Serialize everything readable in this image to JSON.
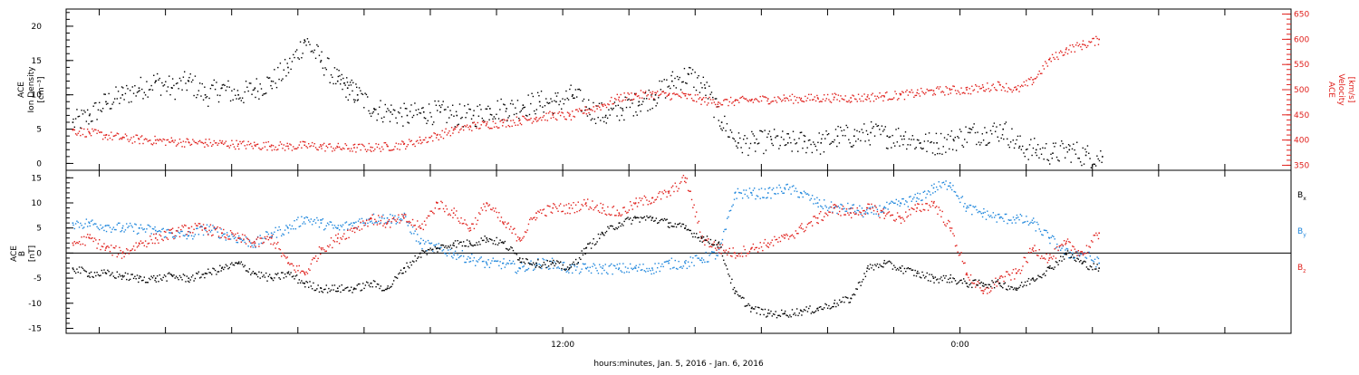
{
  "colors": {
    "black": "#000000",
    "red": "#e0201c",
    "blue": "#1e86dc",
    "frame": "#000000"
  },
  "chart_data": [
    {
      "type": "scatter",
      "panel": "top",
      "ylabel_left": [
        "ACE",
        "Ion Density",
        "[cm⁻³]"
      ],
      "ylabel_right": [
        "ACE",
        "Velocity",
        "[km/s]"
      ],
      "ylim_left": [
        -1,
        22.5
      ],
      "ylim_right": [
        340,
        660
      ],
      "yticks_left": [
        "0",
        "5",
        "10",
        "15",
        "20"
      ],
      "yticks_right": [
        "350",
        "400",
        "450",
        "500",
        "550",
        "600",
        "650"
      ],
      "xlim_hours": [
        -3,
        34
      ],
      "series": [
        {
          "axis": "left",
          "color": "black",
          "x": [
            -2.8,
            -2.3,
            -1.8,
            -1.3,
            -0.8,
            -0.3,
            0.2,
            0.7,
            1.2,
            1.7,
            2.2,
            2.7,
            3.2,
            3.7,
            4.2,
            4.7,
            5.2,
            5.5,
            5.8,
            6.3,
            6.8,
            7.3,
            7.8,
            8.3,
            8.8,
            9.3,
            9.8,
            10.3,
            10.8,
            11.3,
            11.8,
            12.3,
            12.8,
            13.3,
            13.8,
            14.3,
            14.8,
            15.3,
            15.8,
            16.3,
            16.8,
            17.3,
            17.8,
            18.3,
            18.8,
            19.3,
            19.8,
            20.3,
            20.8,
            21.3,
            21.8,
            22.3,
            22.8,
            23.3,
            23.8,
            24.3,
            24.8,
            25.3,
            25.8,
            26.3,
            26.8,
            27.3,
            27.8,
            28.3
          ],
          "y": [
            6,
            7,
            9,
            10,
            11,
            12,
            11,
            12,
            10,
            11,
            10,
            11,
            12,
            14,
            18,
            15,
            12,
            11,
            10,
            8,
            7.5,
            7,
            7.5,
            7.5,
            7,
            7,
            8,
            8,
            8.5,
            9,
            9,
            10,
            8,
            7,
            8,
            9,
            10,
            12,
            13,
            11,
            6,
            3,
            3,
            3.5,
            3,
            3.2,
            3,
            4,
            4,
            4.5,
            4,
            4,
            3,
            3,
            3.5,
            4.5,
            4.5,
            5,
            2.5,
            2,
            1.5,
            2,
            1.2,
            1
          ]
        },
        {
          "axis": "right",
          "color": "red",
          "x": [
            -2.8,
            -2.3,
            -1.8,
            -1.3,
            -0.8,
            -0.3,
            0.2,
            0.7,
            1.2,
            1.7,
            2.2,
            2.7,
            3.2,
            3.7,
            4.2,
            4.7,
            5.2,
            5.7,
            6.2,
            6.7,
            7.2,
            7.7,
            8.2,
            8.7,
            9.2,
            9.7,
            10.2,
            10.7,
            11.2,
            11.7,
            12.2,
            12.7,
            13.2,
            13.7,
            14.2,
            14.7,
            15.2,
            15.7,
            16.2,
            16.7,
            17.2,
            17.7,
            18.2,
            18.7,
            19.2,
            19.7,
            20.2,
            20.7,
            21.2,
            21.7,
            22.2,
            22.7,
            23.2,
            23.7,
            24.2,
            24.7,
            25.2,
            25.7,
            26.2,
            26.7,
            27.2,
            27.7,
            28.2
          ],
          "y": [
            420,
            415,
            410,
            405,
            402,
            400,
            398,
            396,
            395,
            394,
            392,
            390,
            390,
            388,
            390,
            388,
            386,
            385,
            386,
            388,
            392,
            400,
            410,
            420,
            428,
            432,
            435,
            440,
            445,
            450,
            448,
            460,
            470,
            485,
            490,
            492,
            490,
            488,
            480,
            475,
            478,
            480,
            482,
            483,
            483,
            484,
            485,
            484,
            486,
            488,
            490,
            494,
            498,
            500,
            500,
            505,
            510,
            500,
            520,
            560,
            580,
            590,
            600
          ]
        }
      ]
    },
    {
      "type": "scatter",
      "panel": "bottom",
      "ylabel_left": [
        "ACE",
        "B",
        "[nT]"
      ],
      "ylim": [
        -16,
        16.5
      ],
      "yticks": [
        "-15",
        "-10",
        "-5",
        "0",
        "5",
        "10",
        "15"
      ],
      "xlim_hours": [
        -3,
        34
      ],
      "xtick_labels": [
        {
          "hour": 12,
          "label": "12:00"
        },
        {
          "hour": 24,
          "label": "0:00"
        }
      ],
      "xlabel": "hours:minutes, Jan.  5, 2016 - Jan.  6, 2016",
      "legend": [
        "Bx",
        "By",
        "Bz"
      ],
      "series": [
        {
          "name": "Bx",
          "color": "black",
          "x": [
            -2.8,
            -2.3,
            -1.8,
            -1.3,
            -0.8,
            -0.3,
            0.2,
            0.7,
            1.2,
            1.7,
            2.2,
            2.7,
            3.2,
            3.7,
            4.2,
            4.7,
            5.2,
            5.7,
            6.2,
            6.7,
            7.2,
            7.7,
            8.2,
            8.7,
            9.2,
            9.7,
            10.2,
            10.7,
            11.2,
            11.7,
            12.2,
            12.7,
            13.2,
            13.7,
            14.2,
            14.7,
            15.2,
            15.7,
            16.2,
            16.7,
            17.2,
            17.7,
            18.2,
            18.7,
            19.2,
            19.7,
            20.2,
            20.7,
            21.2,
            21.7,
            22.2,
            22.7,
            23.2,
            23.7,
            24.2,
            24.7,
            25.2,
            25.7,
            26.2,
            26.7,
            27.2,
            27.7,
            28.2
          ],
          "y": [
            -3,
            -4,
            -4,
            -4.5,
            -5,
            -5,
            -4.5,
            -5,
            -4,
            -3,
            -2,
            -4,
            -5,
            -4,
            -6,
            -7,
            -7,
            -7,
            -6,
            -7,
            -3,
            0,
            1,
            2,
            2,
            3,
            2,
            -1,
            -2,
            -2,
            -3,
            1,
            4,
            6,
            7,
            7,
            6,
            5,
            3,
            2,
            -8,
            -11,
            -12,
            -12,
            -11.5,
            -11,
            -10,
            -9,
            -3,
            -2,
            -3,
            -4,
            -5,
            -5,
            -6,
            -6,
            -6,
            -7,
            -5,
            -3,
            0,
            -2,
            -3
          ]
        },
        {
          "name": "By",
          "color": "blue",
          "x": [
            -2.8,
            -2.3,
            -1.8,
            -1.3,
            -0.8,
            -0.3,
            0.2,
            0.7,
            1.2,
            1.7,
            2.2,
            2.7,
            3.2,
            3.7,
            4.2,
            4.7,
            5.2,
            5.7,
            6.2,
            6.7,
            7.2,
            7.7,
            8.2,
            8.7,
            9.2,
            9.7,
            10.2,
            10.7,
            11.2,
            11.7,
            12.2,
            12.7,
            13.2,
            13.7,
            14.2,
            14.7,
            15.2,
            15.7,
            16.2,
            16.7,
            17.2,
            17.7,
            18.2,
            18.7,
            19.2,
            19.7,
            20.2,
            20.7,
            21.2,
            21.7,
            22.2,
            22.7,
            23.2,
            23.7,
            24.2,
            24.7,
            25.2,
            25.7,
            26.2,
            26.7,
            27.2,
            27.7,
            28.2
          ],
          "y": [
            6,
            6,
            5.5,
            5,
            5,
            4.5,
            4,
            3.5,
            5,
            4,
            3,
            2,
            4,
            5,
            7,
            6,
            5,
            6,
            7,
            7,
            7,
            2,
            1,
            0,
            -1,
            -2,
            -2,
            -3,
            -2,
            -2,
            -3,
            -3,
            -3,
            -3,
            -3,
            -3,
            -2,
            -2,
            -1,
            0,
            12,
            12,
            12,
            13,
            12,
            10,
            9,
            9,
            8,
            9,
            10,
            11,
            13,
            14,
            9,
            8,
            7,
            7,
            6,
            3,
            0,
            0,
            -2
          ]
        },
        {
          "name": "Bz",
          "color": "red",
          "x": [
            -2.8,
            -2.3,
            -1.8,
            -1.3,
            -0.8,
            -0.3,
            0.2,
            0.7,
            1.2,
            1.7,
            2.2,
            2.7,
            3.2,
            3.7,
            4.2,
            4.7,
            5.2,
            5.7,
            6.2,
            6.7,
            7.2,
            7.7,
            8.2,
            8.7,
            9.2,
            9.7,
            10.2,
            10.7,
            11.2,
            11.7,
            12.2,
            12.7,
            13.2,
            13.7,
            14.2,
            14.7,
            15.2,
            15.7,
            16.2,
            16.7,
            17.2,
            17.7,
            18.2,
            18.7,
            19.2,
            19.7,
            20.2,
            20.7,
            21.2,
            21.7,
            22.2,
            22.7,
            23.2,
            23.7,
            24.2,
            24.7,
            25.2,
            25.7,
            26.2,
            26.7,
            27.2,
            27.7,
            28.2
          ],
          "y": [
            2,
            3,
            1,
            0,
            2,
            3,
            4,
            5,
            5,
            4,
            3,
            2,
            3,
            -2,
            -4,
            1,
            3,
            5,
            7,
            6,
            7,
            5,
            10,
            8,
            5,
            10,
            6,
            3,
            8,
            9,
            9,
            10,
            9,
            8,
            10,
            11,
            12,
            15,
            3,
            1,
            0,
            1,
            2,
            3,
            5,
            7,
            9,
            8,
            9,
            8,
            7,
            9,
            10,
            5,
            -4,
            -8,
            -5,
            -4,
            1,
            -1,
            2,
            0,
            4
          ]
        }
      ]
    }
  ]
}
